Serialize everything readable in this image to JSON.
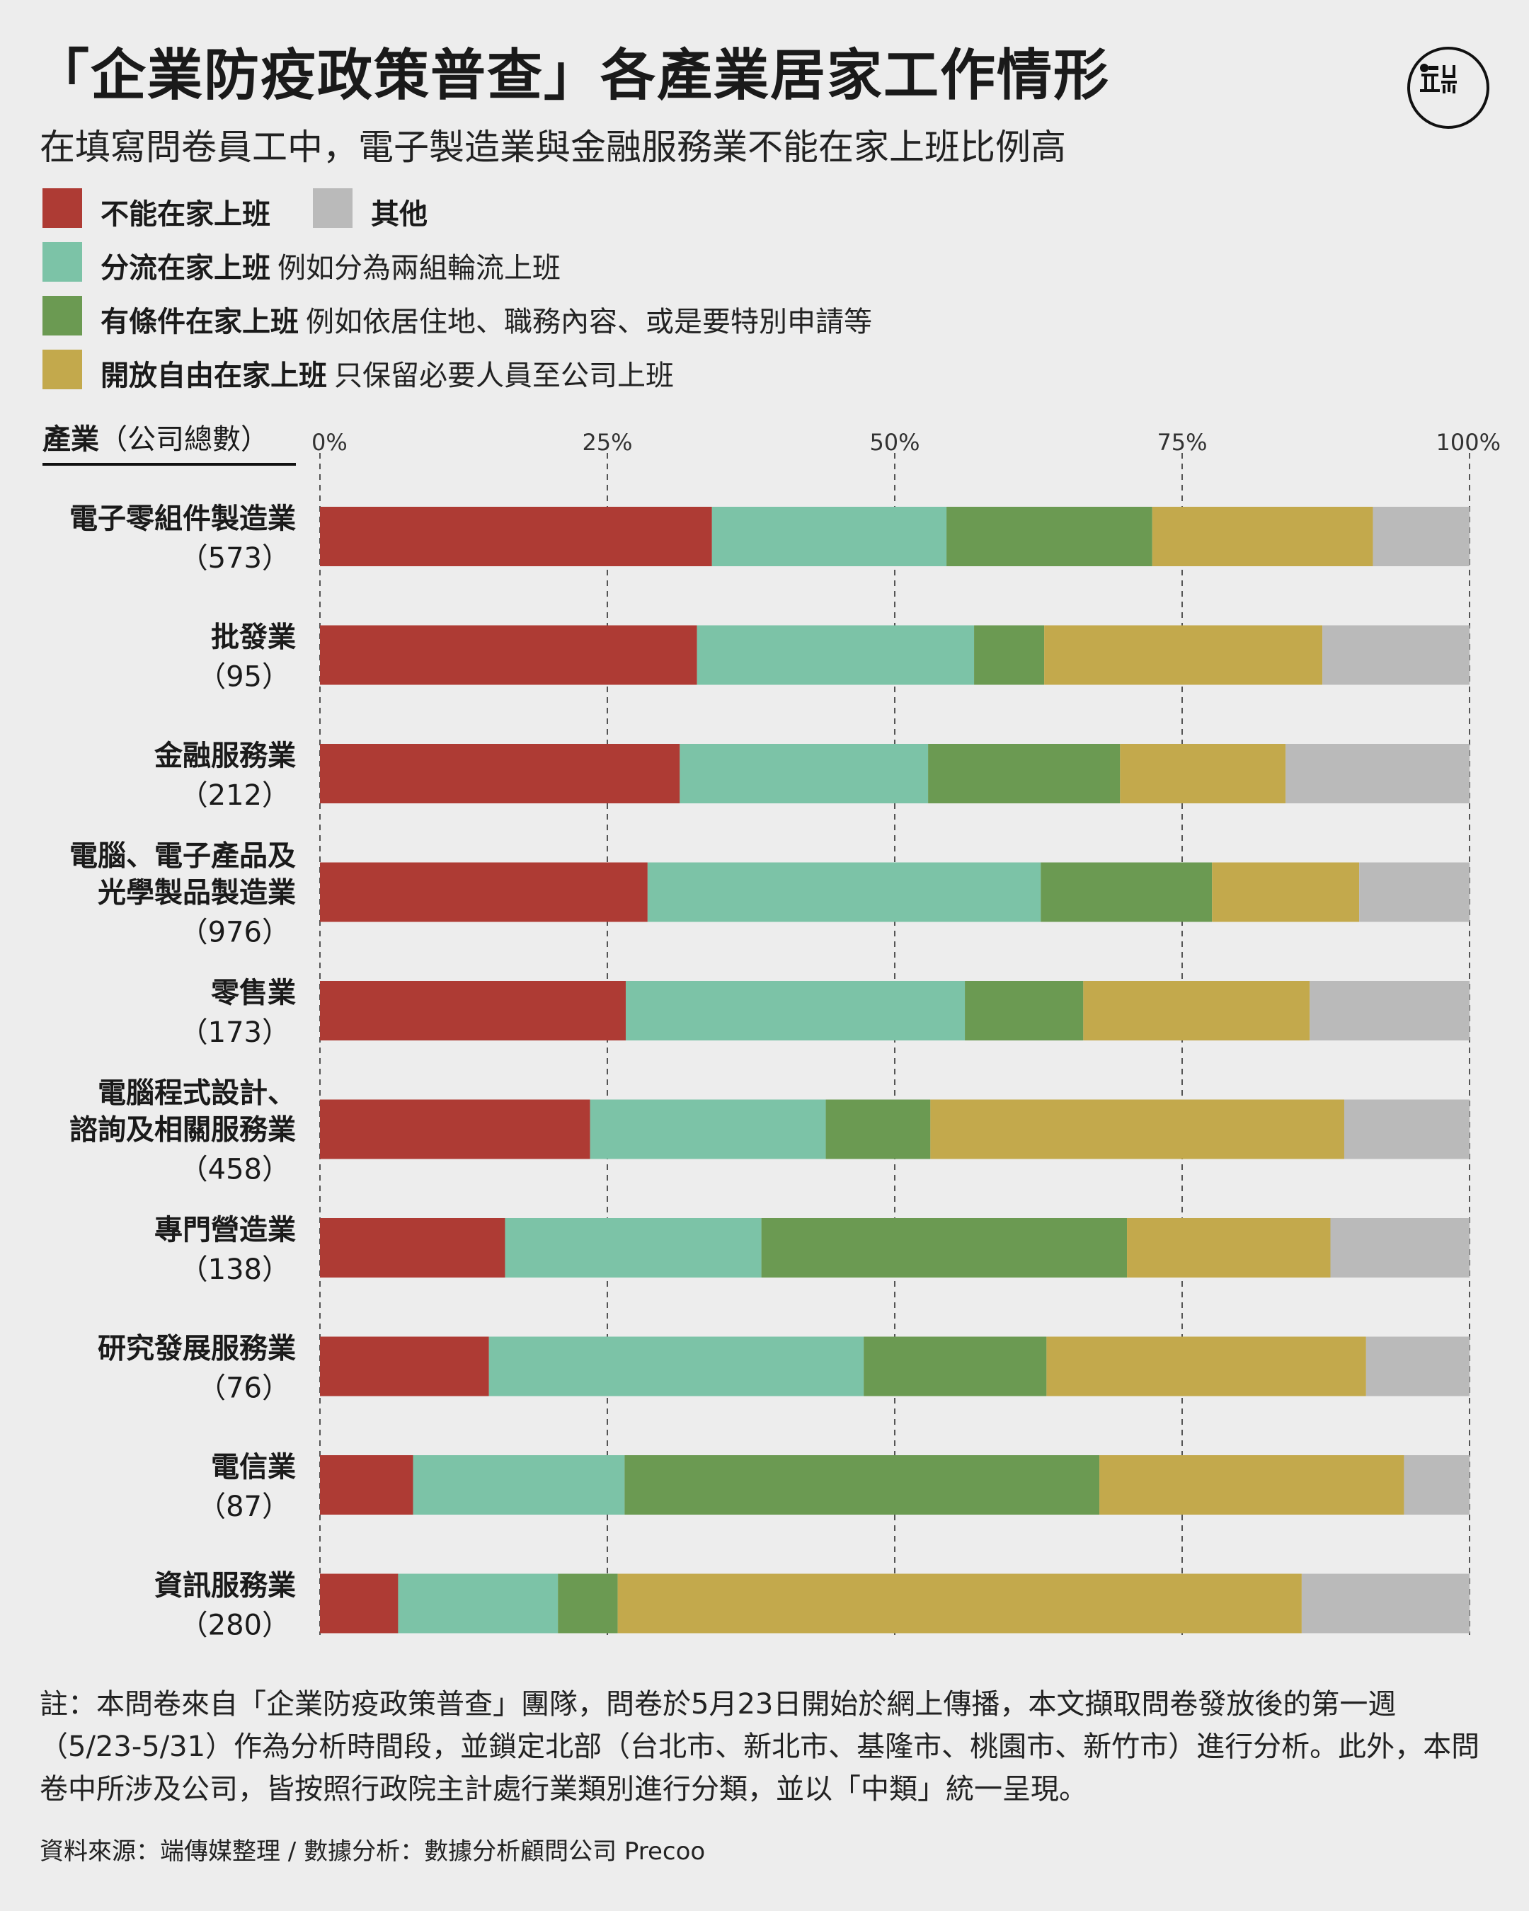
{
  "title": "「企業防疫政策普查」各產業居家工作情形",
  "subtitle": "在填寫問卷員工中，電子製造業與金融服務業不能在家上班比例高",
  "legend": [
    {
      "name": "不能在家上班",
      "desc": "",
      "color": "#ae3b34"
    },
    {
      "name": "其他",
      "desc": "",
      "color": "#bababa"
    },
    {
      "name": "分流在家上班",
      "desc": "例如分為兩組輪流上班",
      "color": "#7cc3a7"
    },
    {
      "name": "有條件在家上班",
      "desc": "例如依居住地、職務內容、或是要特別申請等",
      "color": "#6b9a52"
    },
    {
      "name": "開放自由在家上班",
      "desc": "只保留必要人員至公司上班",
      "color": "#c3a94c"
    }
  ],
  "axis_header": {
    "bold": "產業",
    "rest": "（公司總數）"
  },
  "chart_data": {
    "type": "bar",
    "orientation": "horizontal",
    "stacked": true,
    "x_ticks": [
      "0%",
      "25%",
      "50%",
      "75%",
      "100%"
    ],
    "xlim": [
      0,
      100
    ],
    "grid": "dashed vertical",
    "categories": [
      {
        "label": [
          "電子零組件製造業"
        ],
        "count": "（573）"
      },
      {
        "label": [
          "批發業"
        ],
        "count": "（95）"
      },
      {
        "label": [
          "金融服務業"
        ],
        "count": "（212）"
      },
      {
        "label": [
          "電腦、電子產品及",
          "光學製品製造業"
        ],
        "count": "（976）"
      },
      {
        "label": [
          "零售業"
        ],
        "count": "（173）"
      },
      {
        "label": [
          "電腦程式設計、",
          "諮詢及相關服務業"
        ],
        "count": "（458）"
      },
      {
        "label": [
          "專門營造業"
        ],
        "count": "（138）"
      },
      {
        "label": [
          "研究發展服務業"
        ],
        "count": "（76）"
      },
      {
        "label": [
          "電信業"
        ],
        "count": "（87）"
      },
      {
        "label": [
          "資訊服務業"
        ],
        "count": "（280）"
      }
    ],
    "series": [
      {
        "name": "不能在家上班",
        "color": "#ae3b34",
        "values": [
          34.1,
          32.8,
          31.3,
          28.5,
          26.6,
          23.5,
          16.1,
          14.7,
          8.1,
          6.8
        ]
      },
      {
        "name": "分流在家上班",
        "color": "#7cc3a7",
        "values": [
          20.4,
          24.1,
          21.6,
          34.2,
          29.5,
          20.5,
          22.3,
          32.6,
          18.4,
          13.9
        ]
      },
      {
        "name": "有條件在家上班",
        "color": "#6b9a52",
        "values": [
          17.9,
          6.1,
          16.7,
          14.9,
          10.3,
          9.1,
          31.8,
          15.9,
          41.3,
          5.2
        ]
      },
      {
        "name": "開放自由在家上班",
        "color": "#c3a94c",
        "values": [
          19.2,
          24.2,
          14.4,
          12.8,
          19.7,
          36.0,
          17.7,
          27.8,
          26.5,
          59.5
        ]
      },
      {
        "name": "其他",
        "color": "#bababa",
        "values": [
          8.4,
          12.8,
          16.0,
          9.6,
          13.9,
          10.9,
          12.1,
          9.0,
          5.7,
          14.6
        ]
      }
    ]
  },
  "note": "註：本問卷來自「企業防疫政策普查」團隊，問卷於5月23日開始於網上傳播，本文擷取問卷發放後的第一週（5/23-5/31）作為分析時間段，並鎖定北部（台北市、新北市、基隆市、桃園市、新竹市）進行分析。此外，本問卷中所涉及公司，皆按照行政院主計處行業類別進行分類，並以「中類」統一呈現。",
  "source": "資料來源：端傳媒整理 / 數據分析：數據分析顧問公司 Precoo"
}
